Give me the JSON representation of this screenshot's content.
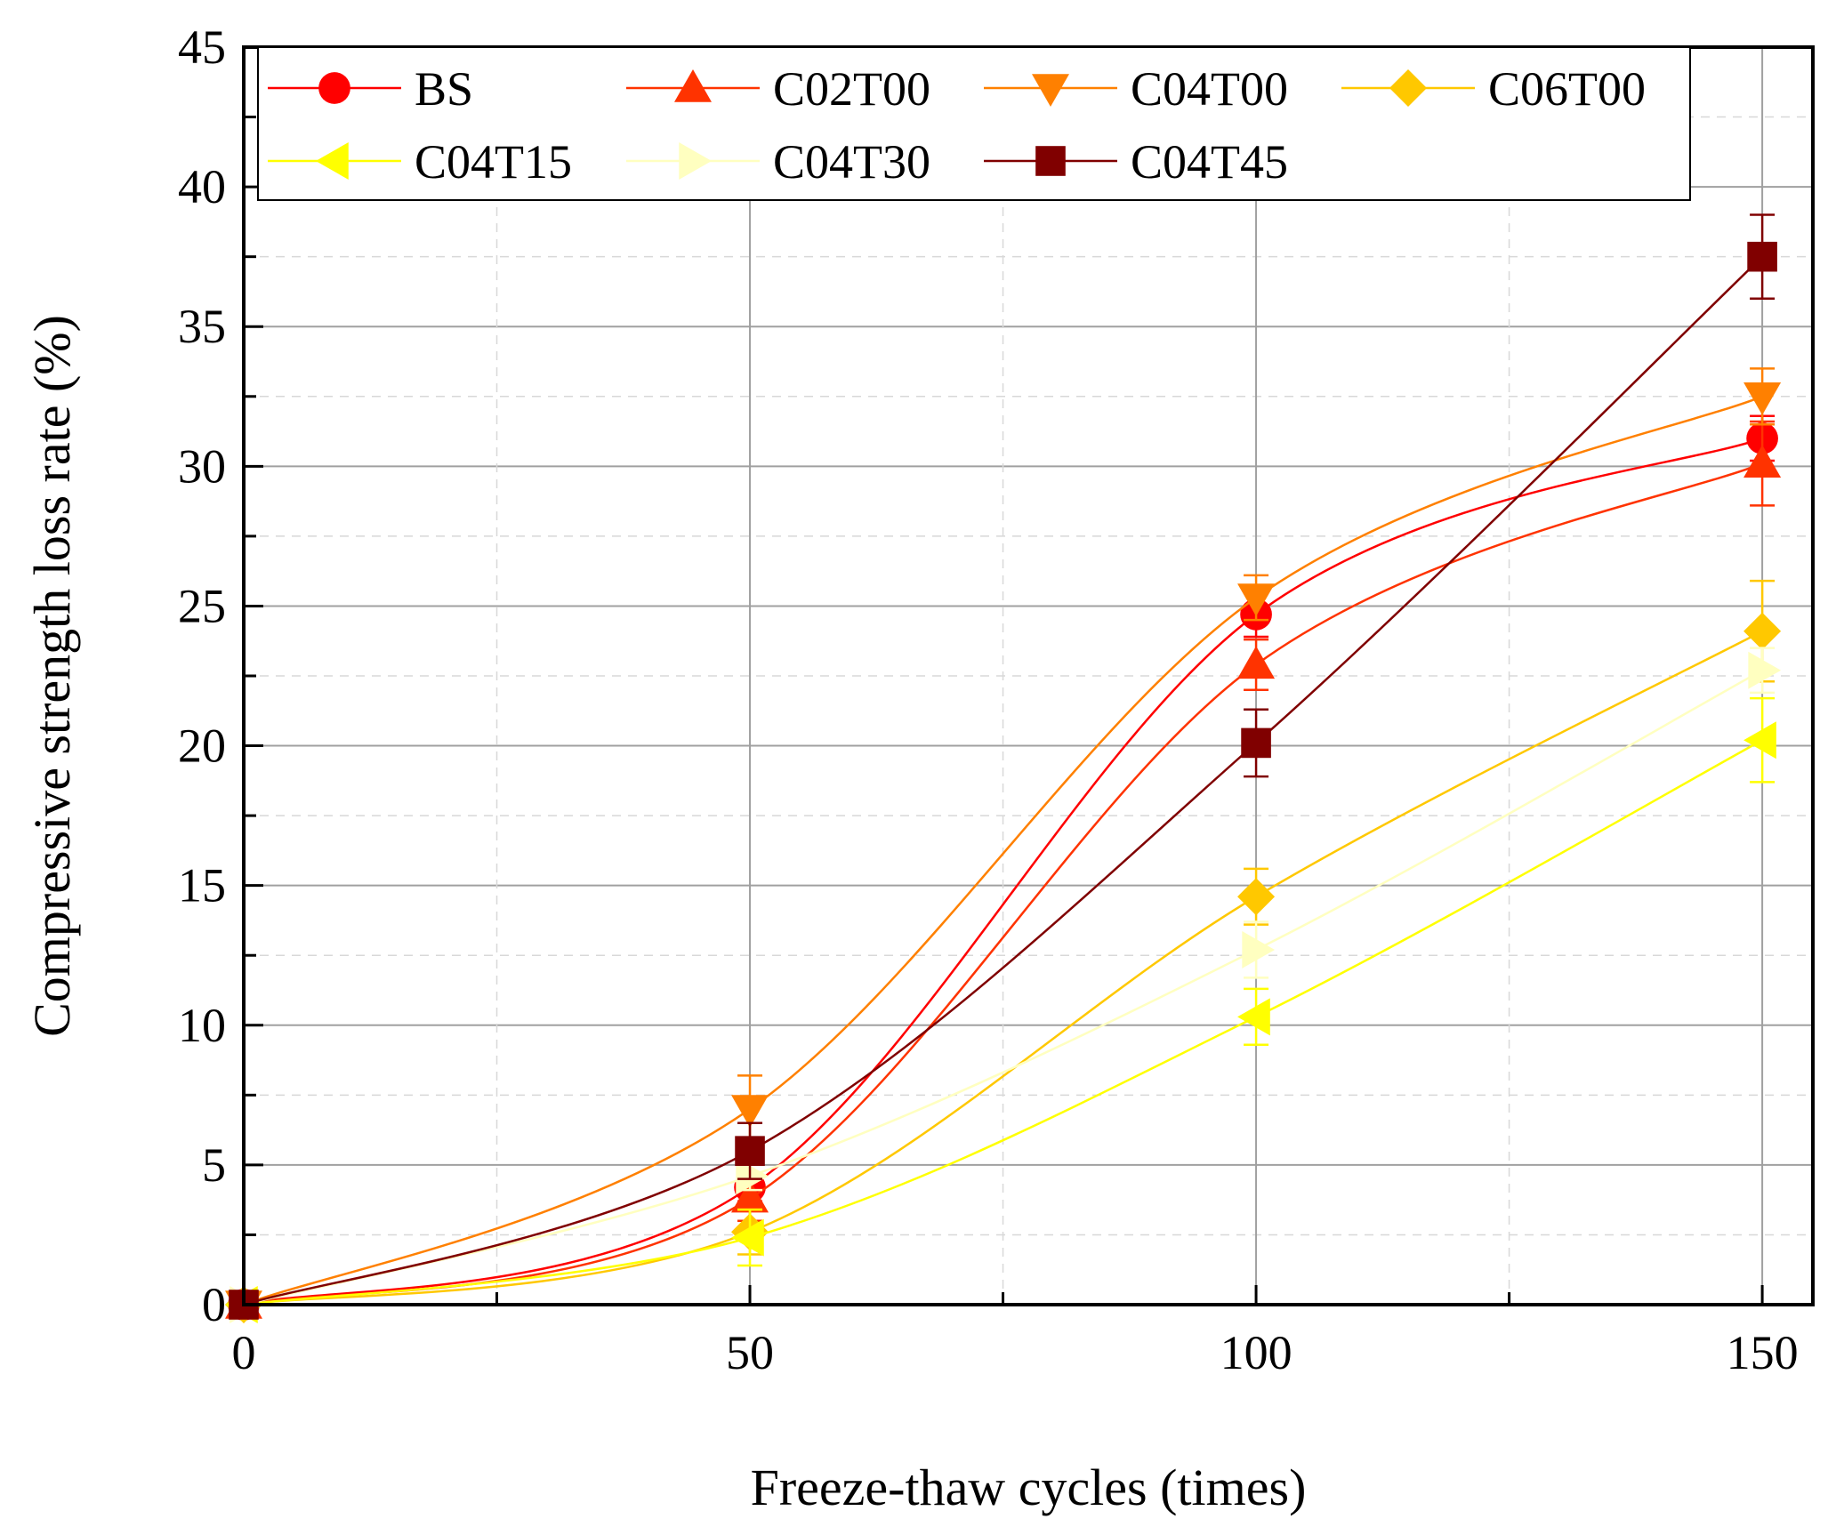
{
  "chart_data": {
    "type": "line",
    "title": "",
    "xlabel": "Freeze-thaw cycles (times)",
    "ylabel": "Compressive strength loss rate (%)",
    "xlim": [
      0,
      155
    ],
    "ylim": [
      0,
      45
    ],
    "xticks": [
      0,
      50,
      100,
      150
    ],
    "yticks": [
      0,
      5,
      10,
      15,
      20,
      25,
      30,
      35,
      40,
      45
    ],
    "grid": true,
    "legend_position": "top",
    "x": [
      0,
      50,
      100,
      150
    ],
    "series": [
      {
        "name": "BS",
        "marker": "circle",
        "color": "#FF0000",
        "values": [
          0,
          4.2,
          24.7,
          31.0
        ],
        "errors": [
          0,
          0.5,
          0.8,
          0.8
        ]
      },
      {
        "name": "C02T00",
        "marker": "triangle-up",
        "color": "#FF3300",
        "values": [
          0,
          3.8,
          22.9,
          30.1
        ],
        "errors": [
          0,
          0.8,
          0.9,
          1.5
        ]
      },
      {
        "name": "C04T00",
        "marker": "triangle-down",
        "color": "#FF8000",
        "values": [
          0,
          7.0,
          25.3,
          32.5
        ],
        "errors": [
          0,
          1.2,
          0.8,
          1.0
        ]
      },
      {
        "name": "C06T00",
        "marker": "diamond",
        "color": "#FFC800",
        "values": [
          0,
          2.6,
          14.6,
          24.1
        ],
        "errors": [
          0,
          0.8,
          1.0,
          1.8
        ]
      },
      {
        "name": "C04T15",
        "marker": "triangle-left",
        "color": "#FFFF00",
        "values": [
          0,
          2.4,
          10.3,
          20.2
        ],
        "errors": [
          0,
          1.0,
          1.0,
          1.5
        ]
      },
      {
        "name": "C04T30",
        "marker": "triangle-right",
        "color": "#FFFFC0",
        "values": [
          0,
          4.6,
          12.7,
          22.7
        ],
        "errors": [
          0,
          0.5,
          1.0,
          0.8
        ]
      },
      {
        "name": "C04T45",
        "marker": "square",
        "color": "#800000",
        "values": [
          0,
          5.5,
          20.1,
          37.5
        ],
        "errors": [
          0,
          1.0,
          1.2,
          1.5
        ]
      }
    ]
  }
}
